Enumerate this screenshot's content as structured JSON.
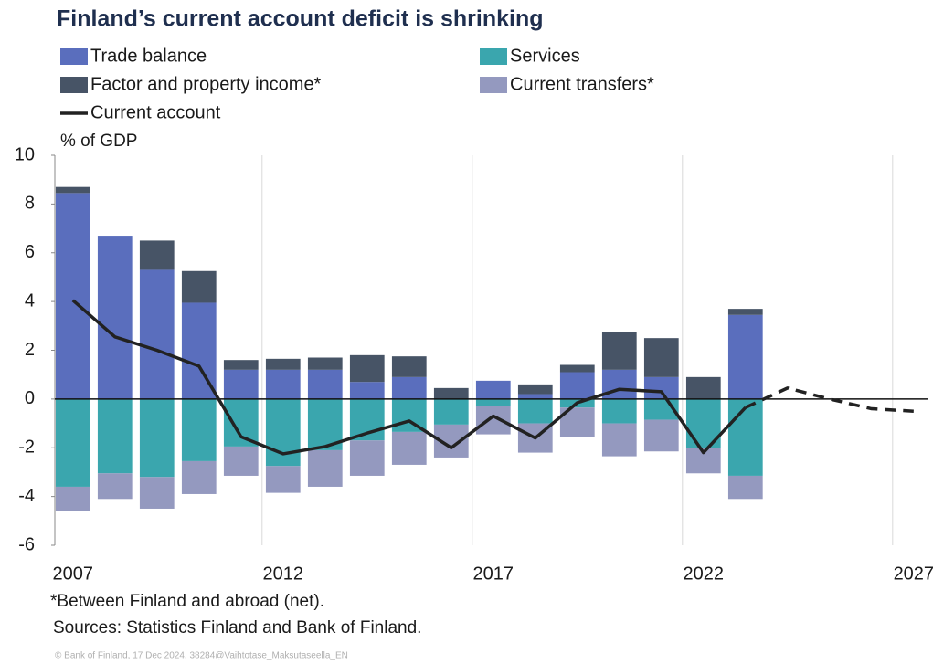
{
  "chart_data": {
    "type": "stacked_bar_line",
    "title": "Finland’s current account deficit is shrinking",
    "y_label": "% of GDP",
    "notes": [
      "*Between Finland and abroad (net).",
      "Sources: Statistics Finland and Bank of Finland."
    ],
    "credit": "© Bank of Finland, 17 Dec 2024, 38284@Vaihtotase_Maksutaseella_EN",
    "x": [
      2007,
      2008,
      2009,
      2010,
      2011,
      2012,
      2013,
      2014,
      2015,
      2016,
      2017,
      2018,
      2019,
      2020,
      2021,
      2022,
      2023,
      2024,
      2025,
      2026,
      2027
    ],
    "xlim": [
      2006.57,
      2027.33
    ],
    "xticks": [
      2007,
      2012,
      2017,
      2022,
      2027
    ],
    "ylim": [
      -6,
      10
    ],
    "yticks": [
      -6,
      -4,
      -2,
      0,
      2,
      4,
      6,
      8,
      10
    ],
    "series": [
      {
        "name": "Trade balance",
        "color": "#5a6ebd",
        "kind": "bar",
        "values": [
          8.45,
          6.7,
          5.3,
          3.95,
          1.2,
          1.2,
          1.2,
          0.7,
          0.9,
          0.0,
          0.75,
          0.2,
          1.1,
          1.2,
          0.9,
          0.0,
          3.45,
          null,
          null,
          null,
          null
        ]
      },
      {
        "name": "Services",
        "color": "#3aa6ae",
        "kind": "bar",
        "values": [
          -3.6,
          -3.05,
          -3.2,
          -2.55,
          -1.95,
          -2.75,
          -2.1,
          -1.7,
          -1.35,
          -1.05,
          -0.3,
          -1.0,
          -0.35,
          -1.0,
          -0.85,
          -2.0,
          -3.15,
          null,
          null,
          null,
          null
        ]
      },
      {
        "name": "Factor and property income*",
        "color": "#475466",
        "kind": "bar",
        "values": [
          0.25,
          0.0,
          1.2,
          1.3,
          0.4,
          0.45,
          0.5,
          1.1,
          0.85,
          0.45,
          0.0,
          0.4,
          0.3,
          1.55,
          1.6,
          0.9,
          0.25,
          null,
          null,
          null,
          null
        ]
      },
      {
        "name": "Current transfers*",
        "color": "#9499bf",
        "kind": "bar",
        "values": [
          -1.0,
          -1.05,
          -1.3,
          -1.35,
          -1.2,
          -1.1,
          -1.5,
          -1.45,
          -1.35,
          -1.35,
          -1.15,
          -1.2,
          -1.2,
          -1.35,
          -1.3,
          -1.05,
          -0.95,
          null,
          null,
          null,
          null
        ]
      },
      {
        "name": "Current account",
        "color": "#222222",
        "kind": "line",
        "dashed_from_index": 16,
        "values": [
          4.05,
          2.55,
          2.0,
          1.35,
          -1.55,
          -2.25,
          -1.95,
          -1.4,
          -0.9,
          -2.0,
          -0.7,
          -1.6,
          -0.15,
          0.4,
          0.3,
          -2.2,
          -0.35,
          0.45,
          0.0,
          -0.4,
          -0.5
        ]
      }
    ]
  }
}
